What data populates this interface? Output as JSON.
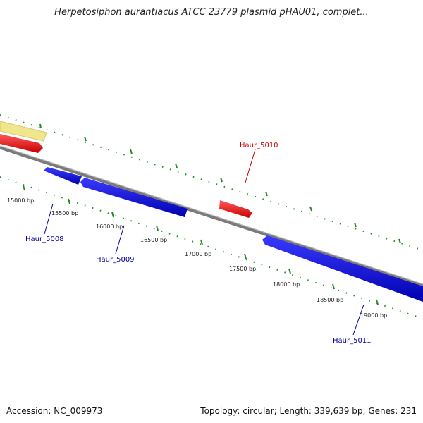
{
  "title": "Herpetosiphon aurantiacus ATCC 23779 plasmid pHAU01, complet...",
  "footer": {
    "accession": "Accession: NC_009973",
    "summary": "Topology: circular; Length: 339,639 bp; Genes: 231"
  },
  "colors": {
    "forward_gene": "#ff0000",
    "reverse_gene": "#0000ff",
    "feature": "#f0e68c",
    "backbone": "#808080",
    "ticks": "#228b22",
    "forward_label": "#cc0000",
    "reverse_label": "#000099"
  },
  "tick_labels": [
    "15000 bp",
    "15500 bp",
    "16000 bp",
    "16500 bp",
    "17000 bp",
    "17500 bp",
    "18000 bp",
    "18500 bp",
    "19000 bp"
  ],
  "genes": [
    {
      "label": "Haur_5008",
      "strand": "reverse"
    },
    {
      "label": "Haur_5009",
      "strand": "reverse"
    },
    {
      "label": "Haur_5010",
      "strand": "forward"
    },
    {
      "label": "Haur_5011",
      "strand": "reverse"
    }
  ]
}
